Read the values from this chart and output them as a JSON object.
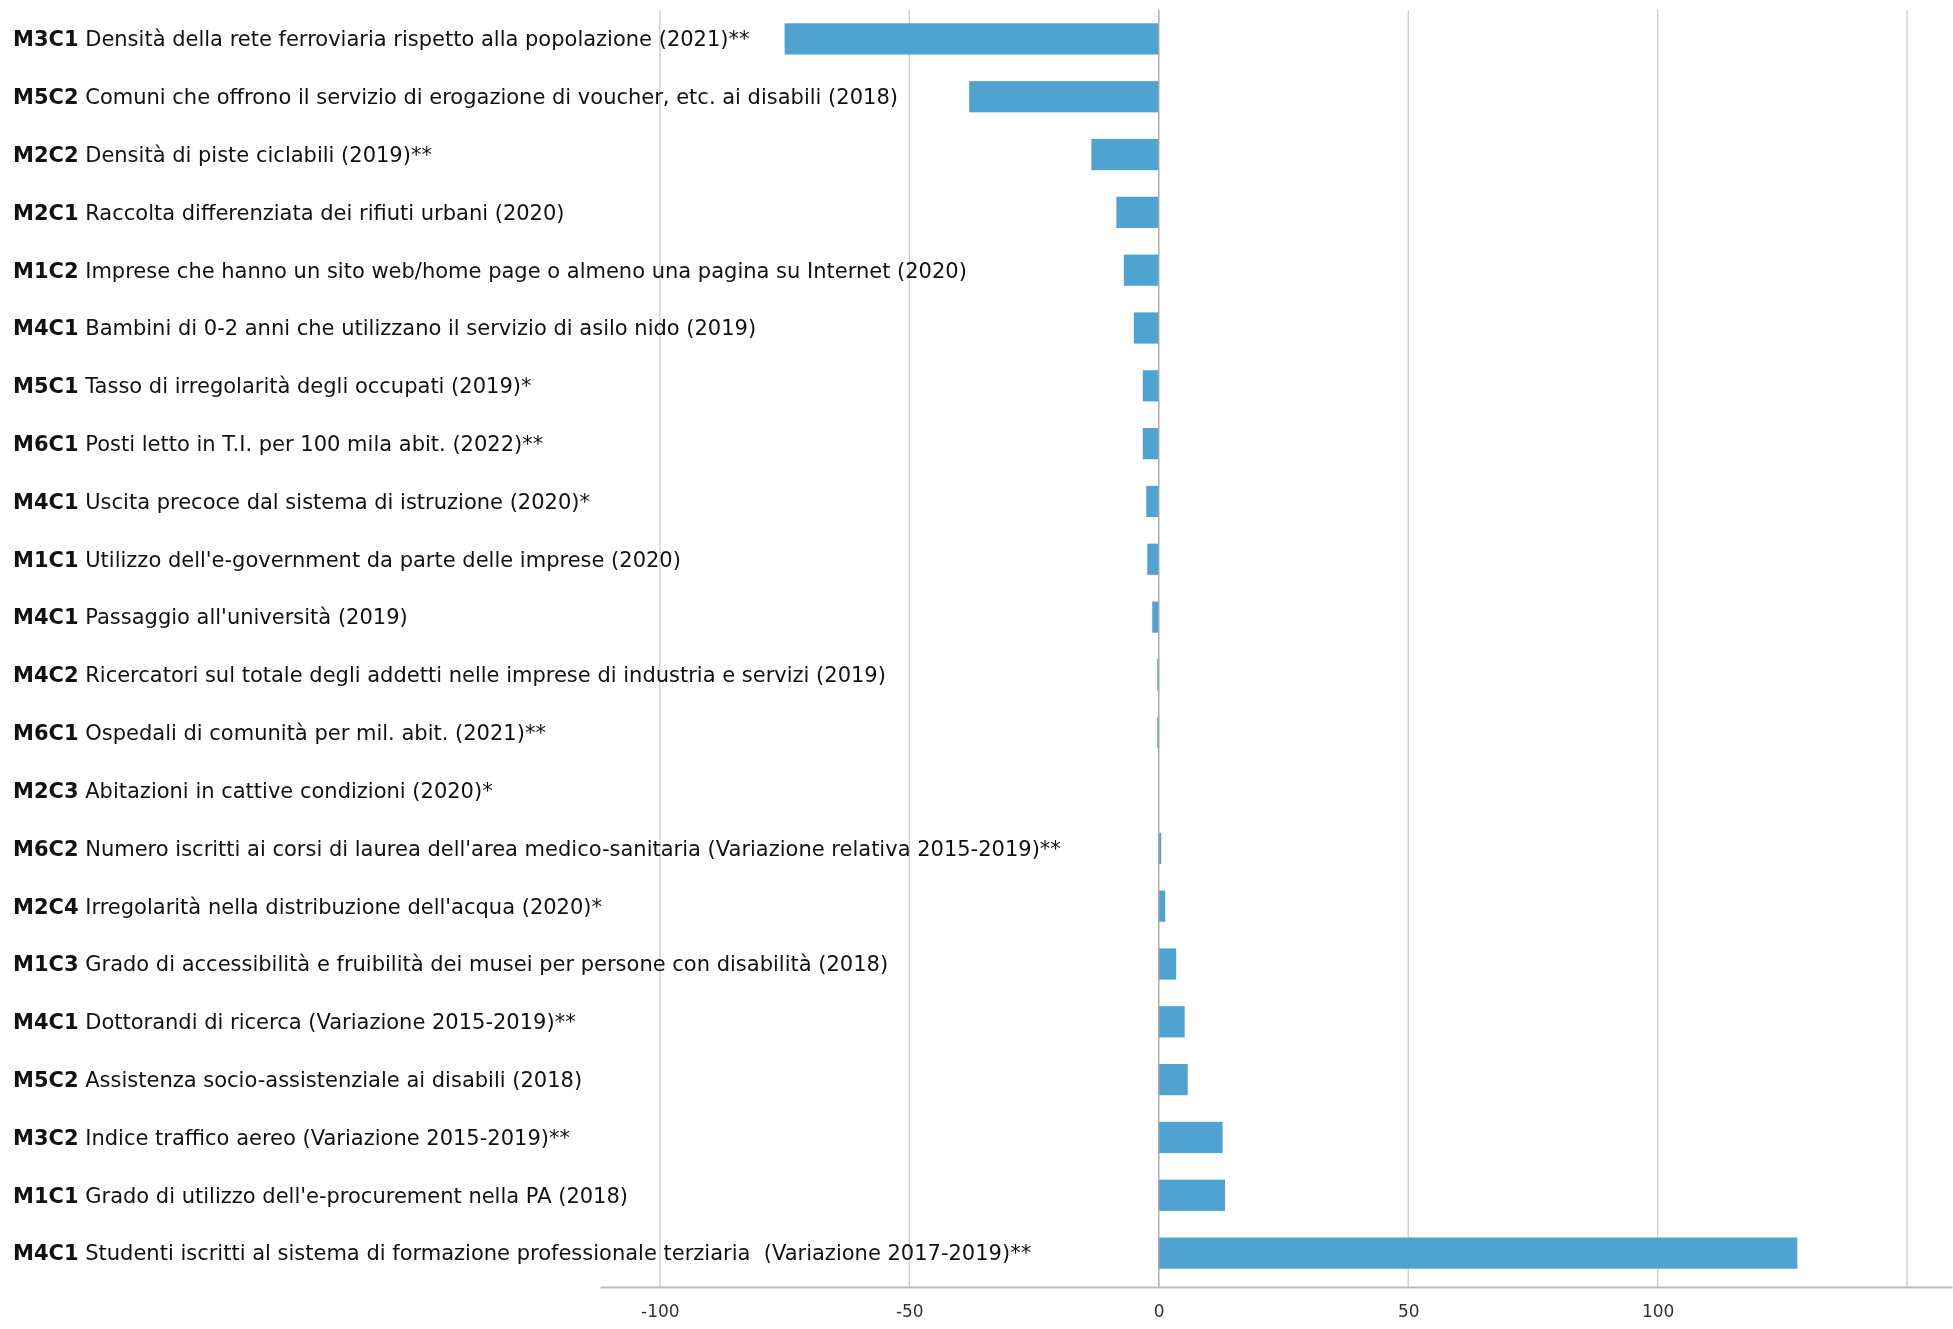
{
  "chart_data": {
    "type": "bar",
    "orientation": "horizontal",
    "categories": [
      "M3C1 Densità della rete ferroviaria rispetto alla popolazione (2021)**",
      "M5C2 Comuni che offrono il servizio di erogazione di voucher, etc. ai disabili (2018)",
      "M2C2 Densità di piste ciclabili (2019)**",
      "M2C1 Raccolta differenziata dei rifiuti urbani (2020)",
      "M1C2 Imprese che hanno un sito web/home page o almeno una pagina su Internet (2020)",
      "M4C1 Bambini di 0-2 anni che utilizzano il servizio di asilo nido (2019)",
      "M5C1 Tasso di irregolarità degli occupati (2019)*",
      "M6C1 Posti letto in T.I. per 100 mila abit. (2022)**",
      "M4C1 Uscita precoce dal sistema di istruzione (2020)*",
      "M1C1 Utilizzo dell'e-government da parte delle imprese (2020)",
      "M4C1 Passaggio all'università (2019)",
      "M4C2 Ricercatori sul totale degli addetti nelle imprese di industria e servizi (2019)",
      "M6C1 Ospedali di comunità per mil. abit. (2021)**",
      "M2C3 Abitazioni in cattive condizioni (2020)*",
      "M6C2 Numero iscritti ai corsi di laurea dell'area medico-sanitaria (Variazione relativa 2015-2019)**",
      "M2C4 Irregolarità nella distribuzione dell'acqua (2020)*",
      "M1C3 Grado di accessibilità e fruibilità dei musei per persone con disabilità (2018)",
      "M4C1 Dottorandi di ricerca (Variazione 2015-2019)**",
      "M5C2 Assistenza socio-assistenziale ai disabili (2018)",
      "M3C2 Indice traffico aereo (Variazione 2015-2019)**",
      "M1C1 Grado di utilizzo dell'e-procurement nella PA (2018)",
      "M4C1 Studenti iscritti al sistema di formazione professionale terziaria  (Variazione 2017-2019)**"
    ],
    "values": [
      -75,
      -38,
      -13.5,
      -8.5,
      -7,
      -5,
      -3.2,
      -3.2,
      -2.5,
      -2.3,
      -1.3,
      -0.3,
      -0.3,
      null,
      0.5,
      1.3,
      3.5,
      5.2,
      5.8,
      12.8,
      13.3,
      128
    ],
    "color": "#4fa3d1",
    "xlim": [
      -112,
      159
    ],
    "xticks": [
      -100,
      -50,
      0,
      50,
      100,
      {
        "value": 150,
        "label": null
      }
    ],
    "grid": "x"
  }
}
